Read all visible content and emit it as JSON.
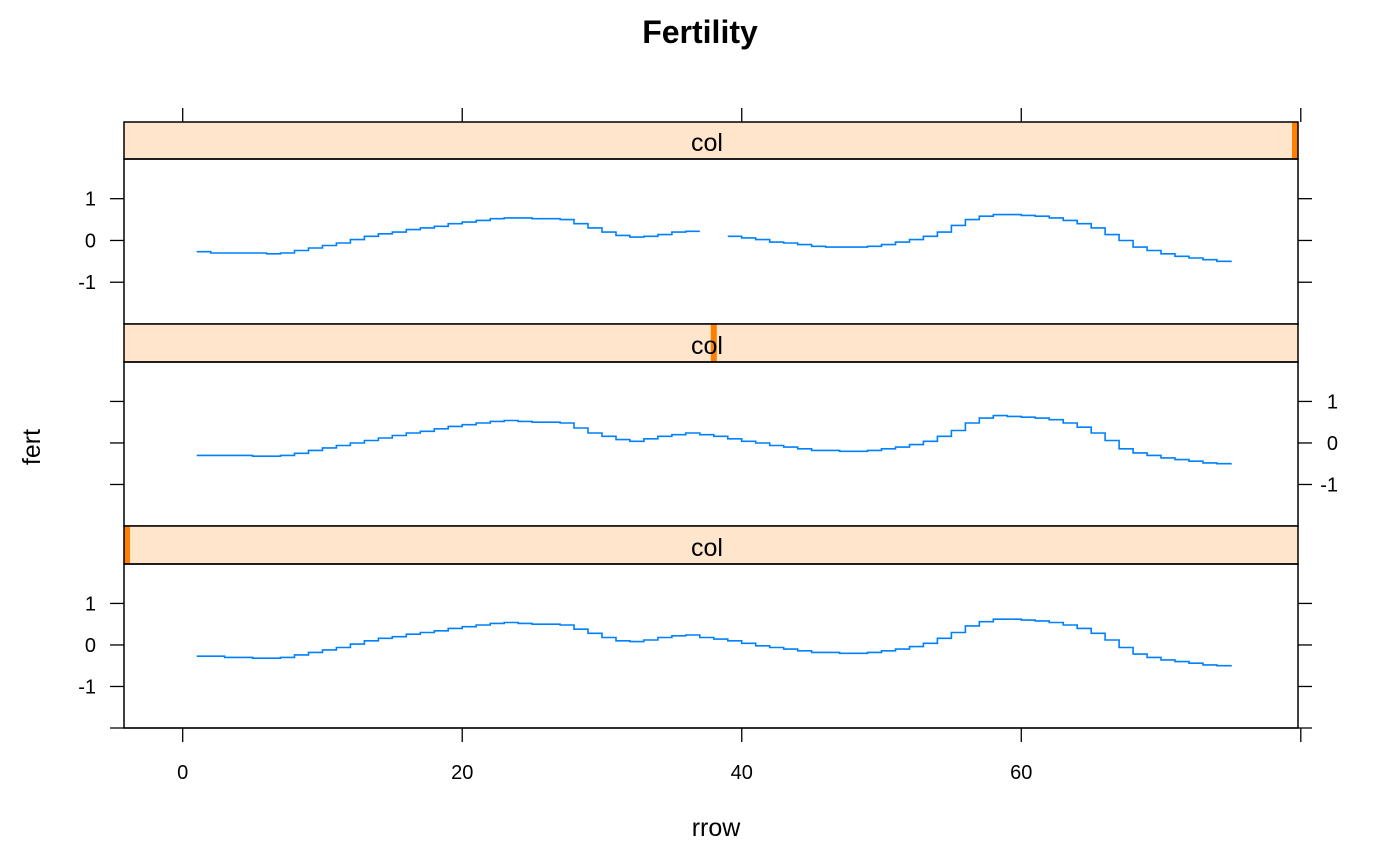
{
  "chart_data": {
    "type": "line",
    "title": "Fertility",
    "xlabel": "rrow",
    "ylabel": "fert",
    "xlim": [
      -4.2,
      79.8
    ],
    "ylim": [
      -2.0,
      1.95
    ],
    "xticks": [
      0,
      20,
      40,
      60
    ],
    "yticks": [
      -1,
      0,
      1
    ],
    "colors": {
      "line": "#0080ff",
      "strip_bg": "#ffe5cc",
      "strip_marker": "#ff7f00",
      "frame": "#000000"
    },
    "panels": [
      {
        "strip_label": "col",
        "strip_marker_value": 80,
        "y_axis_side": "left",
        "x": [
          1,
          2,
          3,
          4,
          5,
          6,
          7,
          8,
          9,
          10,
          11,
          12,
          13,
          14,
          15,
          16,
          17,
          18,
          19,
          20,
          21,
          22,
          23,
          24,
          25,
          26,
          27,
          28,
          29,
          30,
          31,
          32,
          33,
          34,
          35,
          36,
          37,
          38,
          39,
          40,
          41,
          42,
          43,
          44,
          45,
          46,
          47,
          48,
          49,
          50,
          51,
          52,
          53,
          54,
          55,
          56,
          57,
          58,
          59,
          60,
          61,
          62,
          63,
          64,
          65,
          66,
          67,
          68,
          69,
          70,
          71,
          72,
          73,
          74,
          75
        ],
        "y": [
          -0.27,
          -0.3,
          -0.3,
          -0.3,
          -0.3,
          -0.32,
          -0.3,
          -0.24,
          -0.18,
          -0.12,
          -0.06,
          0.02,
          0.1,
          0.16,
          0.2,
          0.26,
          0.3,
          0.34,
          0.4,
          0.44,
          0.48,
          0.52,
          0.54,
          0.54,
          0.52,
          0.52,
          0.5,
          0.4,
          0.3,
          0.2,
          0.12,
          0.08,
          0.1,
          0.14,
          0.2,
          0.22,
          0.22,
          null,
          0.1,
          0.06,
          0.02,
          -0.04,
          -0.06,
          -0.1,
          -0.14,
          -0.16,
          -0.16,
          -0.16,
          -0.14,
          -0.1,
          -0.04,
          0.02,
          0.1,
          0.2,
          0.36,
          0.5,
          0.58,
          0.62,
          0.62,
          0.6,
          0.58,
          0.54,
          0.48,
          0.4,
          0.3,
          0.14,
          0.0,
          -0.16,
          -0.24,
          -0.32,
          -0.38,
          -0.42,
          -0.46,
          -0.5,
          -0.52
        ]
      },
      {
        "strip_label": "col",
        "strip_marker_value": 38,
        "y_axis_side": "right",
        "x": [
          1,
          2,
          3,
          4,
          5,
          6,
          7,
          8,
          9,
          10,
          11,
          12,
          13,
          14,
          15,
          16,
          17,
          18,
          19,
          20,
          21,
          22,
          23,
          24,
          25,
          26,
          27,
          28,
          29,
          30,
          31,
          32,
          33,
          34,
          35,
          36,
          37,
          38,
          39,
          40,
          41,
          42,
          43,
          44,
          45,
          46,
          47,
          48,
          49,
          50,
          51,
          52,
          53,
          54,
          55,
          56,
          57,
          58,
          59,
          60,
          61,
          62,
          63,
          64,
          65,
          66,
          67,
          68,
          69,
          70,
          71,
          72,
          73,
          74,
          75
        ],
        "y": [
          -0.3,
          -0.3,
          -0.3,
          -0.3,
          -0.32,
          -0.32,
          -0.3,
          -0.25,
          -0.18,
          -0.12,
          -0.06,
          0.0,
          0.06,
          0.12,
          0.18,
          0.24,
          0.28,
          0.34,
          0.4,
          0.44,
          0.48,
          0.52,
          0.54,
          0.52,
          0.5,
          0.5,
          0.48,
          0.36,
          0.24,
          0.16,
          0.08,
          0.04,
          0.1,
          0.16,
          0.2,
          0.24,
          0.2,
          0.16,
          0.1,
          0.04,
          0.0,
          -0.06,
          -0.1,
          -0.14,
          -0.18,
          -0.18,
          -0.2,
          -0.2,
          -0.18,
          -0.14,
          -0.1,
          -0.04,
          0.04,
          0.16,
          0.3,
          0.48,
          0.6,
          0.66,
          0.64,
          0.62,
          0.6,
          0.56,
          0.48,
          0.38,
          0.24,
          0.06,
          -0.14,
          -0.24,
          -0.3,
          -0.36,
          -0.4,
          -0.44,
          -0.48,
          -0.5,
          -0.52
        ]
      },
      {
        "strip_label": "col",
        "strip_marker_value": -4,
        "y_axis_side": "left",
        "x": [
          1,
          2,
          3,
          4,
          5,
          6,
          7,
          8,
          9,
          10,
          11,
          12,
          13,
          14,
          15,
          16,
          17,
          18,
          19,
          20,
          21,
          22,
          23,
          24,
          25,
          26,
          27,
          28,
          29,
          30,
          31,
          32,
          33,
          34,
          35,
          36,
          37,
          38,
          39,
          40,
          41,
          42,
          43,
          44,
          45,
          46,
          47,
          48,
          49,
          50,
          51,
          52,
          53,
          54,
          55,
          56,
          57,
          58,
          59,
          60,
          61,
          62,
          63,
          64,
          65,
          66,
          67,
          68,
          69,
          70,
          71,
          72,
          73,
          74,
          75
        ],
        "y": [
          -0.27,
          -0.27,
          -0.3,
          -0.3,
          -0.32,
          -0.32,
          -0.3,
          -0.24,
          -0.18,
          -0.12,
          -0.06,
          0.02,
          0.1,
          0.16,
          0.2,
          0.26,
          0.3,
          0.34,
          0.4,
          0.44,
          0.48,
          0.52,
          0.54,
          0.52,
          0.5,
          0.5,
          0.48,
          0.38,
          0.28,
          0.18,
          0.1,
          0.08,
          0.12,
          0.18,
          0.22,
          0.24,
          0.18,
          0.14,
          0.1,
          0.04,
          -0.02,
          -0.06,
          -0.1,
          -0.14,
          -0.18,
          -0.18,
          -0.2,
          -0.2,
          -0.18,
          -0.14,
          -0.1,
          -0.04,
          0.04,
          0.16,
          0.3,
          0.46,
          0.56,
          0.62,
          0.62,
          0.6,
          0.58,
          0.54,
          0.48,
          0.4,
          0.28,
          0.12,
          -0.06,
          -0.22,
          -0.3,
          -0.36,
          -0.4,
          -0.44,
          -0.48,
          -0.5,
          -0.52
        ]
      }
    ]
  }
}
